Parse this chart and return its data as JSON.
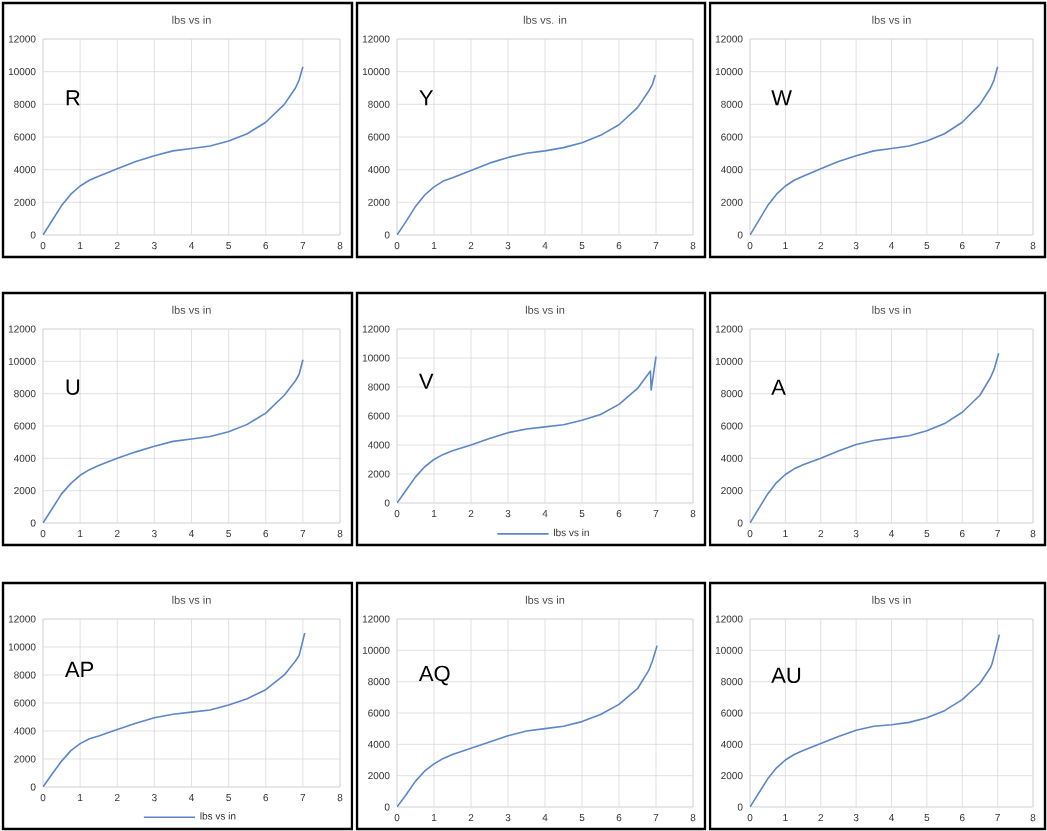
{
  "chart_data": [
    {
      "type": "line",
      "title": "lbs vs in",
      "annotations": [
        "R"
      ],
      "xlim": [
        0,
        8
      ],
      "ylim": [
        0,
        12000
      ],
      "xticks": [
        0,
        1,
        2,
        3,
        4,
        5,
        6,
        7,
        8
      ],
      "yticks": [
        0,
        2000,
        4000,
        6000,
        8000,
        10000,
        12000
      ],
      "grid": true,
      "series": [
        {
          "color": "#5b87c8",
          "x": [
            0,
            0.25,
            0.5,
            0.75,
            1,
            1.25,
            1.5,
            2,
            2.5,
            3,
            3.5,
            4,
            4.5,
            5,
            5.5,
            6,
            6.5,
            6.8,
            6.9,
            7
          ],
          "values": [
            0,
            900,
            1800,
            2500,
            3000,
            3350,
            3600,
            4050,
            4500,
            4850,
            5150,
            5300,
            5450,
            5750,
            6200,
            6900,
            8000,
            9000,
            9500,
            10300
          ]
        }
      ]
    },
    {
      "type": "line",
      "title": "lbs vs. in",
      "annotations": [
        "Y"
      ],
      "xlim": [
        0,
        8
      ],
      "ylim": [
        0,
        12000
      ],
      "xticks": [
        0,
        1,
        2,
        3,
        4,
        5,
        6,
        7,
        8
      ],
      "yticks": [
        0,
        2000,
        4000,
        6000,
        8000,
        10000,
        12000
      ],
      "grid": true,
      "series": [
        {
          "color": "#5b87c8",
          "x": [
            0,
            0.25,
            0.5,
            0.75,
            1,
            1.25,
            1.5,
            2,
            2.5,
            3,
            3.5,
            4,
            4.5,
            5,
            5.5,
            6,
            6.5,
            6.8,
            6.9,
            6.98
          ],
          "values": [
            0,
            850,
            1750,
            2450,
            2950,
            3300,
            3500,
            3950,
            4400,
            4750,
            5000,
            5150,
            5350,
            5650,
            6100,
            6750,
            7800,
            8800,
            9200,
            9800
          ]
        }
      ]
    },
    {
      "type": "line",
      "title": "lbs vs in",
      "annotations": [
        "W"
      ],
      "xlim": [
        0,
        8
      ],
      "ylim": [
        0,
        12000
      ],
      "xticks": [
        0,
        1,
        2,
        3,
        4,
        5,
        6,
        7,
        8
      ],
      "yticks": [
        0,
        2000,
        4000,
        6000,
        8000,
        10000,
        12000
      ],
      "grid": true,
      "series": [
        {
          "color": "#5b87c8",
          "x": [
            0,
            0.25,
            0.5,
            0.75,
            1,
            1.25,
            1.5,
            2,
            2.5,
            3,
            3.5,
            4,
            4.5,
            5,
            5.5,
            6,
            6.5,
            6.8,
            6.9,
            7
          ],
          "values": [
            0,
            900,
            1800,
            2500,
            3000,
            3350,
            3600,
            4050,
            4500,
            4850,
            5150,
            5300,
            5450,
            5750,
            6200,
            6900,
            8000,
            9000,
            9500,
            10300
          ]
        }
      ]
    },
    {
      "type": "line",
      "title": "lbs vs in",
      "annotations": [
        "U"
      ],
      "xlim": [
        0,
        8
      ],
      "ylim": [
        0,
        12000
      ],
      "xticks": [
        0,
        1,
        2,
        3,
        4,
        5,
        6,
        7,
        8
      ],
      "yticks": [
        0,
        2000,
        4000,
        6000,
        8000,
        10000,
        12000
      ],
      "grid": true,
      "series": [
        {
          "color": "#5b87c8",
          "x": [
            0,
            0.25,
            0.5,
            0.75,
            1,
            1.25,
            1.5,
            2,
            2.5,
            3,
            3.5,
            4,
            4.5,
            5,
            5.5,
            6,
            6.5,
            6.8,
            6.9,
            7
          ],
          "values": [
            0,
            900,
            1800,
            2450,
            2950,
            3300,
            3550,
            4000,
            4400,
            4750,
            5050,
            5200,
            5350,
            5650,
            6100,
            6800,
            7900,
            8800,
            9200,
            10100
          ]
        }
      ]
    },
    {
      "type": "line",
      "title": "lbs vs in",
      "annotations": [
        "V"
      ],
      "xlim": [
        0,
        8
      ],
      "ylim": [
        0,
        12000
      ],
      "xticks": [
        0,
        1,
        2,
        3,
        4,
        5,
        6,
        7,
        8
      ],
      "yticks": [
        0,
        2000,
        4000,
        6000,
        8000,
        10000,
        12000
      ],
      "grid": true,
      "legend": "bottom",
      "series": [
        {
          "name": "lbs vs in",
          "color": "#5b87c8",
          "x": [
            0,
            0.25,
            0.5,
            0.75,
            1,
            1.25,
            1.5,
            2,
            2.5,
            3,
            3.5,
            4,
            4.5,
            5,
            5.5,
            6,
            6.5,
            6.85,
            6.87,
            7
          ],
          "values": [
            0,
            900,
            1800,
            2500,
            3000,
            3350,
            3600,
            4000,
            4450,
            4850,
            5100,
            5250,
            5400,
            5700,
            6100,
            6800,
            7900,
            9100,
            7800,
            10100
          ]
        }
      ]
    },
    {
      "type": "line",
      "title": "lbs vs in",
      "annotations": [
        "A"
      ],
      "xlim": [
        0,
        8
      ],
      "ylim": [
        0,
        12000
      ],
      "xticks": [
        0,
        1,
        2,
        3,
        4,
        5,
        6,
        7,
        8
      ],
      "yticks": [
        0,
        2000,
        4000,
        6000,
        8000,
        10000,
        12000
      ],
      "grid": true,
      "series": [
        {
          "color": "#5b87c8",
          "x": [
            0,
            0.25,
            0.5,
            0.75,
            1,
            1.25,
            1.5,
            2,
            2.5,
            3,
            3.5,
            4,
            4.5,
            5,
            5.5,
            6,
            6.5,
            6.8,
            6.9,
            7.03
          ],
          "values": [
            0,
            900,
            1800,
            2500,
            3000,
            3350,
            3600,
            4000,
            4450,
            4850,
            5100,
            5250,
            5400,
            5700,
            6150,
            6850,
            7900,
            9000,
            9500,
            10500
          ]
        }
      ]
    },
    {
      "type": "line",
      "title": "lbs vs in",
      "annotations": [
        "AP"
      ],
      "xlim": [
        0,
        8
      ],
      "ylim": [
        0,
        12000
      ],
      "xticks": [
        0,
        1,
        2,
        3,
        4,
        5,
        6,
        7,
        8
      ],
      "yticks": [
        0,
        2000,
        4000,
        6000,
        8000,
        10000,
        12000
      ],
      "grid": true,
      "legend": "bottom",
      "series": [
        {
          "name": "lbs vs in",
          "color": "#5b87c8",
          "x": [
            0,
            0.25,
            0.5,
            0.75,
            1,
            1.25,
            1.5,
            2,
            2.5,
            3,
            3.5,
            4,
            4.5,
            5,
            5.5,
            6,
            6.5,
            6.8,
            6.9,
            7.05
          ],
          "values": [
            0,
            950,
            1850,
            2600,
            3100,
            3450,
            3650,
            4100,
            4550,
            4950,
            5200,
            5350,
            5500,
            5850,
            6300,
            6950,
            8000,
            9000,
            9400,
            11000
          ]
        }
      ]
    },
    {
      "type": "line",
      "title": "lbs vs in",
      "annotations": [
        "AQ"
      ],
      "xlim": [
        0,
        8
      ],
      "ylim": [
        0,
        12000
      ],
      "xticks": [
        0,
        1,
        2,
        3,
        4,
        5,
        6,
        7,
        8
      ],
      "yticks": [
        0,
        2000,
        4000,
        6000,
        8000,
        10000,
        12000
      ],
      "grid": true,
      "series": [
        {
          "color": "#5b87c8",
          "x": [
            0,
            0.25,
            0.5,
            0.75,
            1,
            1.25,
            1.5,
            2,
            2.5,
            3,
            3.5,
            4,
            4.5,
            5,
            5.5,
            6,
            6.5,
            6.8,
            6.9,
            7.03
          ],
          "values": [
            0,
            800,
            1650,
            2300,
            2750,
            3100,
            3350,
            3750,
            4150,
            4550,
            4850,
            5000,
            5150,
            5450,
            5900,
            6550,
            7550,
            8700,
            9300,
            10300
          ]
        }
      ]
    },
    {
      "type": "line",
      "title": "lbs vs in",
      "annotations": [
        "AU"
      ],
      "xlim": [
        0,
        8
      ],
      "ylim": [
        0,
        12000
      ],
      "xticks": [
        0,
        1,
        2,
        3,
        4,
        5,
        6,
        7,
        8
      ],
      "yticks": [
        0,
        2000,
        4000,
        6000,
        8000,
        10000,
        12000
      ],
      "grid": true,
      "series": [
        {
          "color": "#5b87c8",
          "x": [
            0,
            0.25,
            0.5,
            0.75,
            1,
            1.25,
            1.5,
            2,
            2.5,
            3,
            3.5,
            4,
            4.5,
            5,
            5.5,
            6,
            6.5,
            6.8,
            6.85,
            7.05
          ],
          "values": [
            0,
            900,
            1800,
            2500,
            3000,
            3350,
            3600,
            4050,
            4500,
            4900,
            5150,
            5250,
            5400,
            5700,
            6150,
            6850,
            7900,
            8900,
            9200,
            11000
          ]
        }
      ]
    }
  ]
}
